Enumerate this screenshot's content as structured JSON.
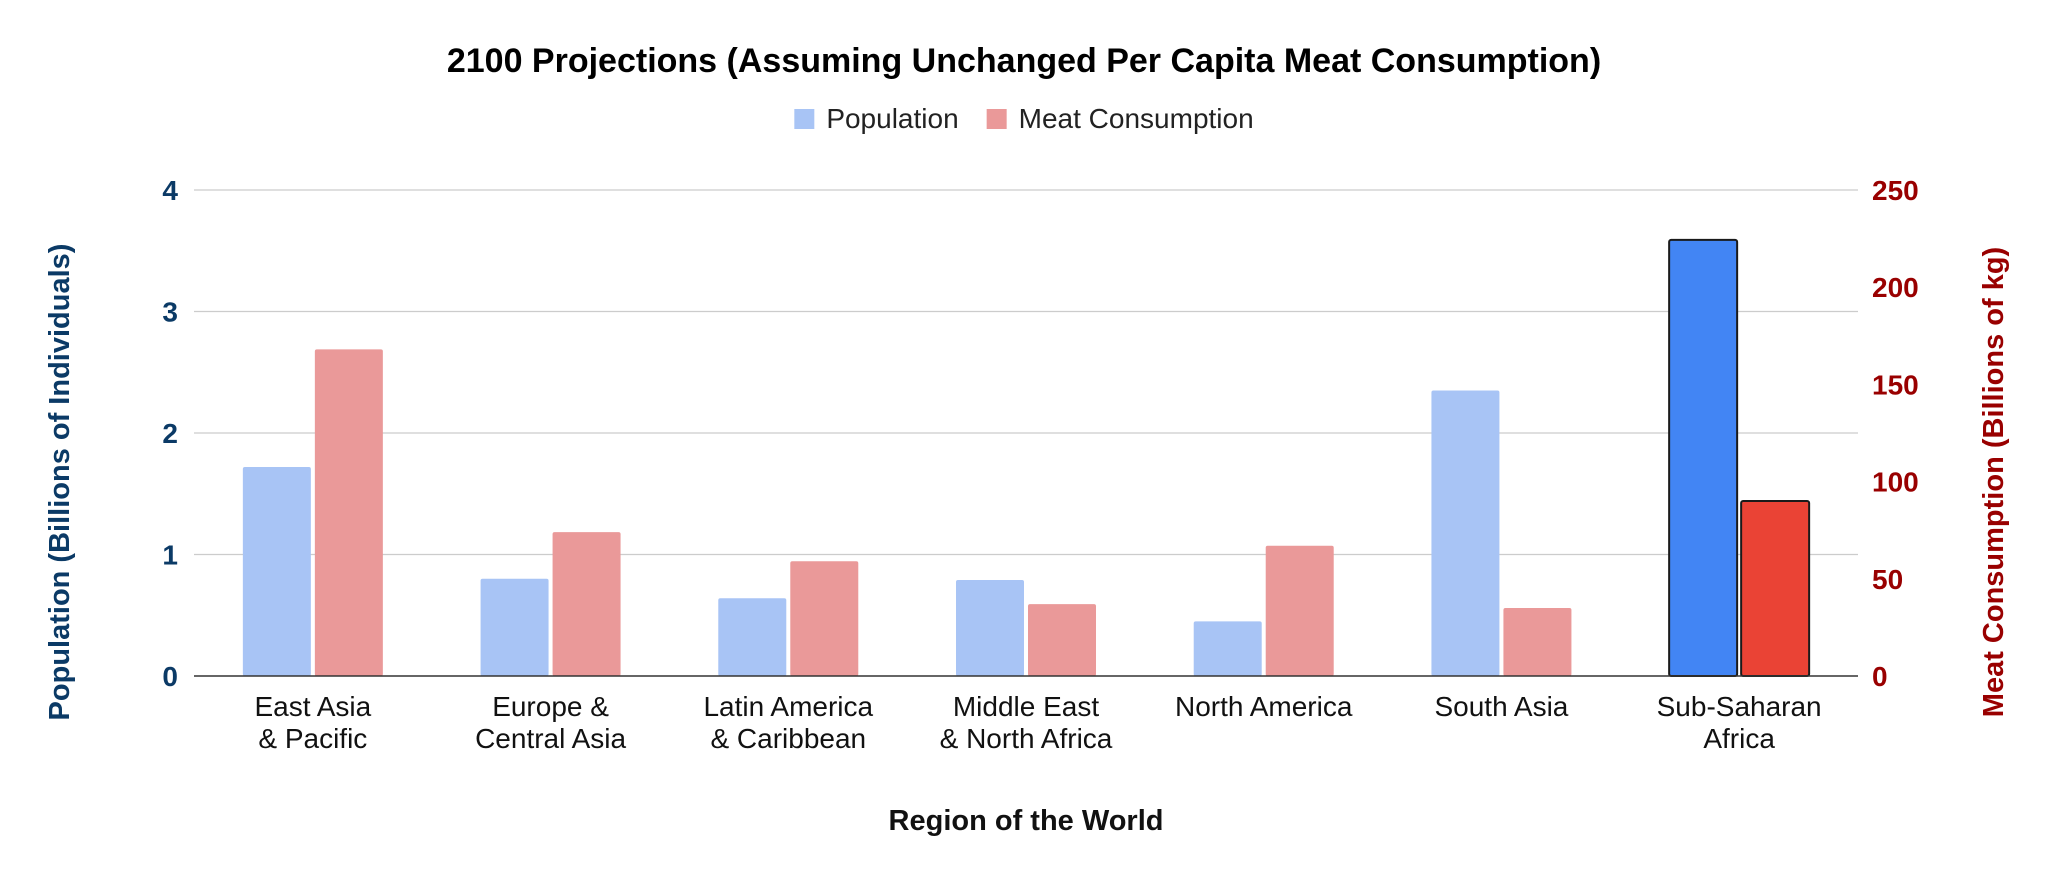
{
  "chart_data": {
    "type": "bar",
    "title": "2100 Projections (Assuming Unchanged Per Capita Meat Consumption)",
    "xlabel": "Region of the World",
    "ylabel_left": "Population (Billions of Individuals)",
    "ylabel_right": "Meat Consumption (Billions of kg)",
    "categories": [
      [
        "East Asia",
        "& Pacific"
      ],
      [
        "Europe &",
        "Central Asia"
      ],
      [
        "Latin America",
        "& Caribbean"
      ],
      [
        "Middle East",
        "& North Africa"
      ],
      [
        "North America"
      ],
      [
        "South Asia"
      ],
      [
        "Sub-Saharan",
        "Africa"
      ]
    ],
    "highlight_index": 6,
    "series": [
      {
        "name": "Population",
        "axis": "left",
        "color": "#a8c4f5",
        "highlight_color": "#4285f4",
        "values": [
          1.72,
          0.8,
          0.64,
          0.79,
          0.45,
          2.35,
          3.59
        ]
      },
      {
        "name": "Meat Consumption",
        "axis": "right",
        "color": "#ea9999",
        "highlight_color": "#ea4335",
        "values": [
          168,
          74,
          59,
          37,
          67,
          35,
          90
        ]
      }
    ],
    "ylim_left": [
      0,
      4
    ],
    "yticks_left": [
      0,
      1,
      2,
      3,
      4
    ],
    "ylim_right": [
      0,
      250
    ],
    "yticks_right": [
      0,
      50,
      100,
      150,
      200,
      250
    ],
    "grid": true,
    "legend_position": "top-center"
  }
}
